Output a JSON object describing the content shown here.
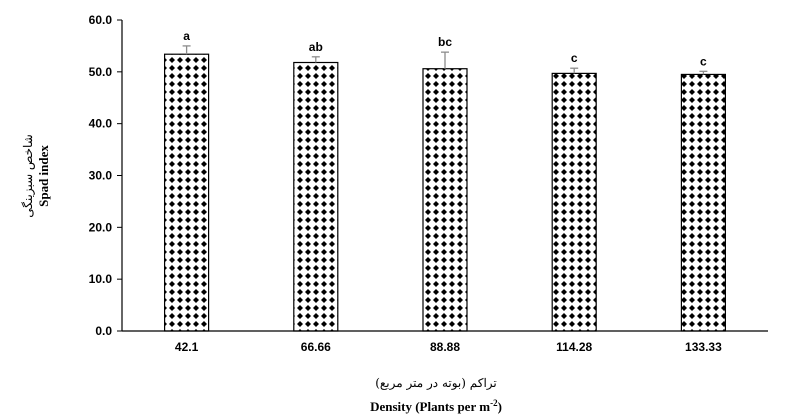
{
  "chart_data": {
    "type": "bar",
    "categories": [
      "42.1",
      "66.66",
      "88.88",
      "114.28",
      "133.33"
    ],
    "values": [
      53.4,
      51.8,
      50.6,
      49.7,
      49.5
    ],
    "errors": [
      1.6,
      1.1,
      3.2,
      1.0,
      0.6
    ],
    "significance": [
      "a",
      "ab",
      "bc",
      "c",
      "c"
    ],
    "yticks": [
      "0.0",
      "10.0",
      "20.0",
      "30.0",
      "40.0",
      "50.0",
      "60.0"
    ],
    "ylim": [
      0,
      60
    ],
    "grid": false,
    "legend": "none",
    "xlabel_fa": "تراکم (بوته در متر مربع)",
    "xlabel_en": "Density (Plants per m",
    "xlabel_en_sup": "-2",
    "xlabel_en_close": ")",
    "ylabel_fa": "شاخص سبزینگی",
    "ylabel_en": "Spad index",
    "colors": {
      "bar_fill": "#ffffff",
      "bar_pattern": "#000000",
      "axis": "#000000",
      "error_bar": "#8c8c8c"
    }
  }
}
